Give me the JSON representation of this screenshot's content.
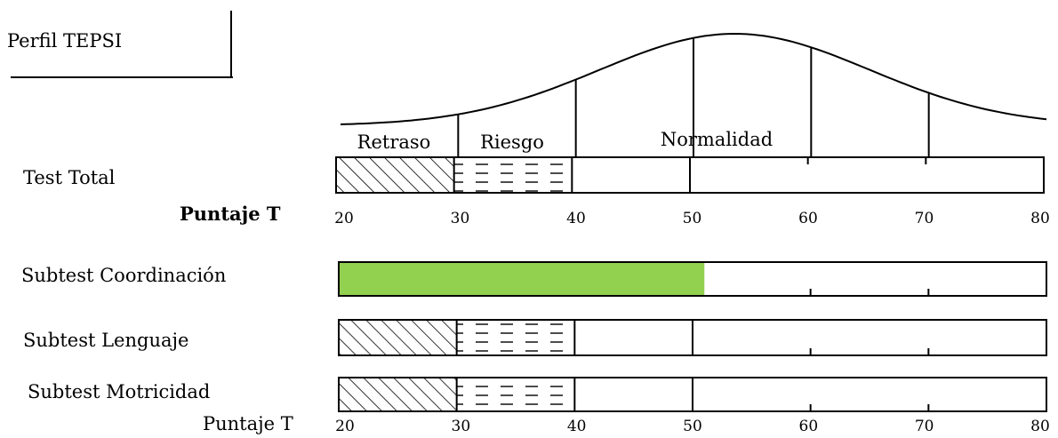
{
  "title": "Perfil TEPSI",
  "chart_data": {
    "type": "bar",
    "x_axis_label": "Puntaje T",
    "xlim": [
      20,
      80
    ],
    "ticks": [
      20,
      30,
      40,
      50,
      60,
      70,
      80
    ],
    "zones": [
      {
        "label": "Retraso",
        "from": 20,
        "to": 30,
        "pattern": "diagonal-hatch"
      },
      {
        "label": "Riesgo",
        "from": 30,
        "to": 40,
        "pattern": "dashed"
      },
      {
        "label": "Normalidad",
        "from": 40,
        "to": 80,
        "pattern": "none"
      }
    ],
    "rows": [
      {
        "label": "Test Total",
        "value": null,
        "zones_shown": true
      },
      {
        "label": "Subtest Coordinación",
        "value": 51,
        "zones_shown": false
      },
      {
        "label": "Subtest Lenguaje",
        "value": null,
        "zones_shown": true
      },
      {
        "label": "Subtest Motricidad",
        "value": null,
        "zones_shown": true
      }
    ],
    "bar_color": "#92d050",
    "curve": "normal distribution over Puntaje T"
  },
  "labels": {
    "test_total": "Test Total",
    "puntaje_top": "Puntaje T",
    "coord": "Subtest Coordinación",
    "lenguaje": "Subtest Lenguaje",
    "motricidad": "Subtest Motricidad",
    "puntaje_bottom": "Puntaje T",
    "retraso": "Retraso",
    "riesgo": "Riesgo",
    "normalidad": "Normalidad"
  }
}
